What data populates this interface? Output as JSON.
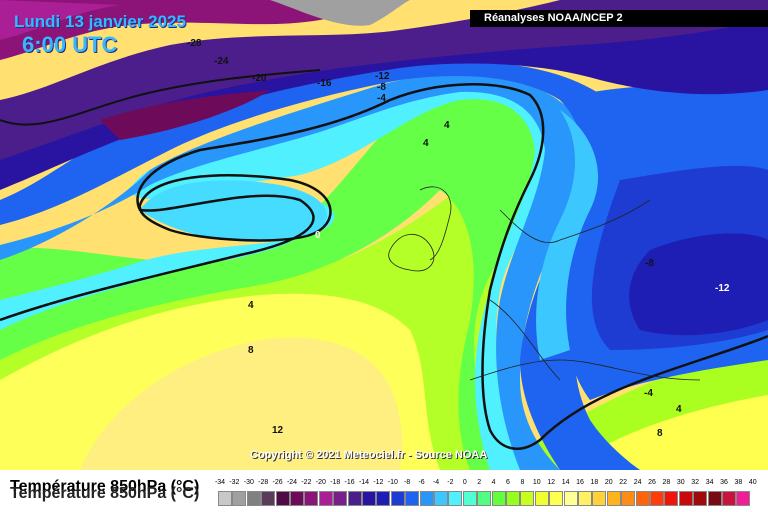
{
  "header": {
    "date": "Lundi 13 janvier 2025",
    "time": "6:00 UTC",
    "source": "Réanalyses NOAA/NCEP 2"
  },
  "copyright": "Copyright © 2021 Meteociel.fr - Source NOAA",
  "variable_title": "Température 850hPa (°C)",
  "contour_labels": [
    {
      "text": "-28",
      "light": false
    },
    {
      "text": "-24",
      "light": false
    },
    {
      "text": "-20",
      "light": false
    },
    {
      "text": "-16",
      "light": false
    },
    {
      "text": "-12",
      "light": false
    },
    {
      "text": "-8",
      "light": false
    },
    {
      "text": "-4",
      "light": false
    },
    {
      "text": "4",
      "light": false
    },
    {
      "text": "4",
      "light": false
    },
    {
      "text": "0",
      "light": true
    },
    {
      "text": "4",
      "light": false
    },
    {
      "text": "8",
      "light": false
    },
    {
      "text": "12",
      "light": false
    },
    {
      "text": "-8",
      "light": false
    },
    {
      "text": "-12",
      "light": true
    },
    {
      "text": "-4",
      "light": false
    },
    {
      "text": "4",
      "light": false
    },
    {
      "text": "8",
      "light": false
    }
  ],
  "legend": {
    "ticks": [
      "-34",
      "-32",
      "-30",
      "-28",
      "-26",
      "-24",
      "-22",
      "-20",
      "-18",
      "-16",
      "-14",
      "-12",
      "-10",
      "-8",
      "-6",
      "-4",
      "-2",
      "0",
      "2",
      "4",
      "6",
      "8",
      "10",
      "12",
      "14",
      "16",
      "18",
      "20",
      "22",
      "24",
      "26",
      "28",
      "30",
      "32",
      "34",
      "36",
      "38",
      "40"
    ],
    "colors": [
      "#c8c8c8",
      "#a0a0a0",
      "#808080",
      "#5a3c5a",
      "#500a46",
      "#6e0a5a",
      "#8c1478",
      "#aa1e96",
      "#7a1e8c",
      "#4b1e8c",
      "#2814a0",
      "#1e1eb4",
      "#1e3cd2",
      "#1e64f0",
      "#2896fa",
      "#3cc8ff",
      "#50f0ff",
      "#50ffd2",
      "#50ff82",
      "#64ff3c",
      "#96ff1e",
      "#c8ff1e",
      "#f0ff32",
      "#ffff50",
      "#ffff96",
      "#fff064",
      "#ffd23c",
      "#ffb41e",
      "#ff8c14",
      "#ff640a",
      "#ff3c0a",
      "#f0140a",
      "#c80a0a",
      "#a00a0a",
      "#780a14",
      "#c8143c",
      "#f01e96"
    ]
  }
}
